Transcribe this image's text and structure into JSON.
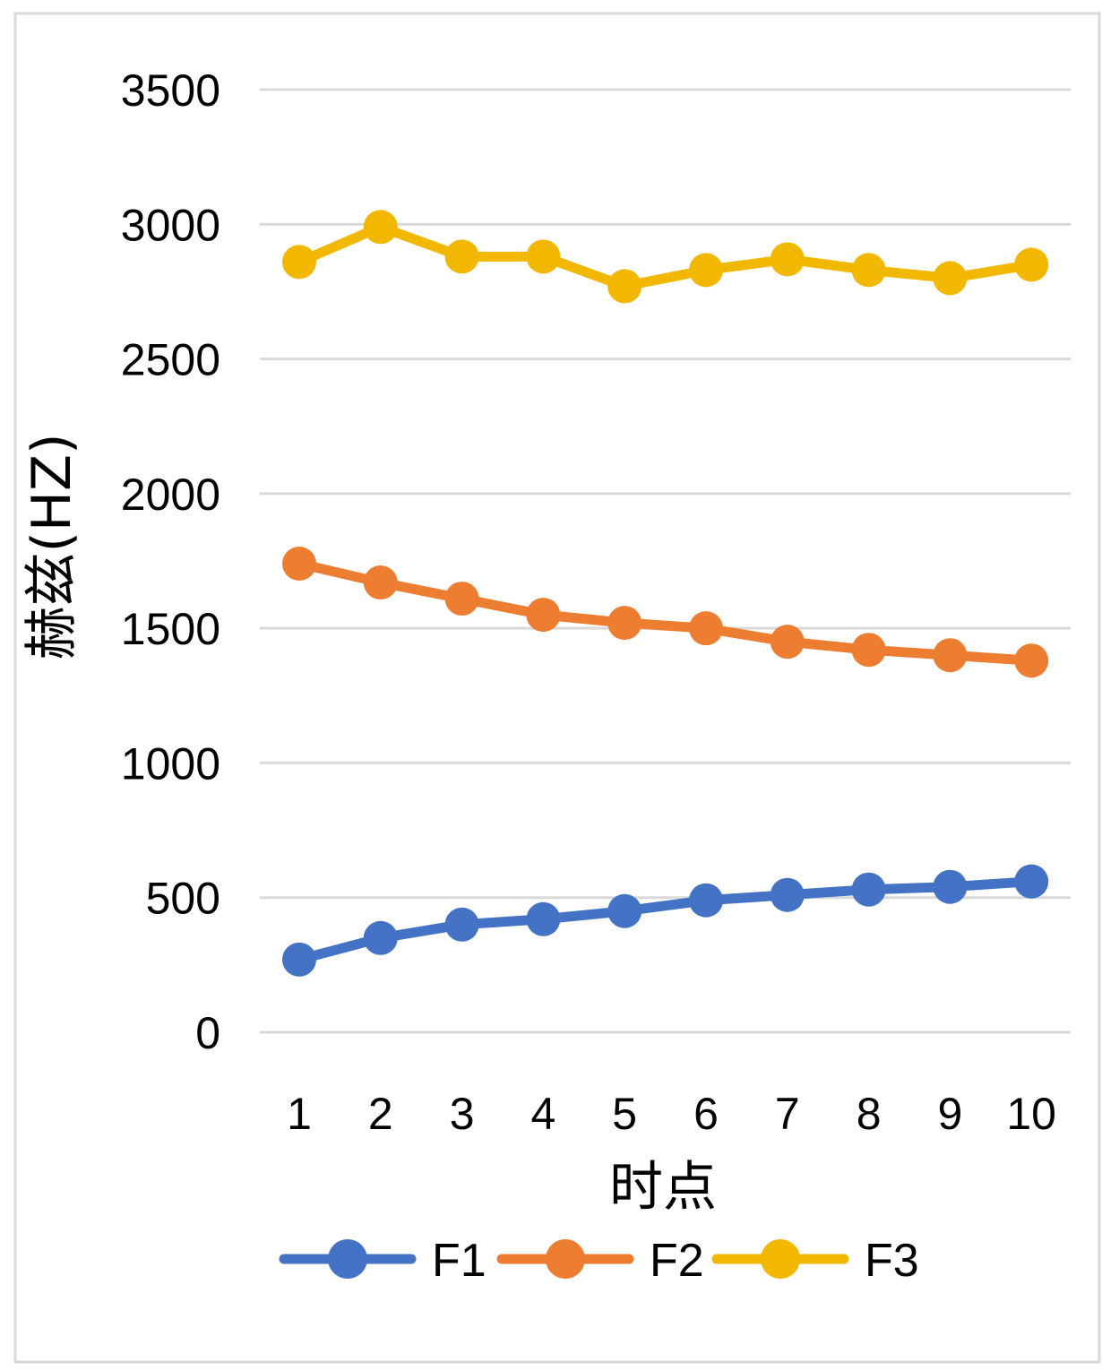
{
  "chart_data": {
    "type": "line",
    "title": "",
    "xlabel": "时点",
    "ylabel": "赫兹(HZ)",
    "categories": [
      "1",
      "2",
      "3",
      "4",
      "5",
      "6",
      "7",
      "8",
      "9",
      "10"
    ],
    "ylim": [
      0,
      3500
    ],
    "yticks": [
      "0",
      "500",
      "1000",
      "1500",
      "2000",
      "2500",
      "3000",
      "3500"
    ],
    "grid": true,
    "legend": "bottom",
    "series": [
      {
        "name": "F1",
        "color": "#4472C4",
        "values": [
          270,
          350,
          400,
          420,
          450,
          490,
          510,
          530,
          540,
          560
        ]
      },
      {
        "name": "F2",
        "color": "#ED7D31",
        "values": [
          1740,
          1670,
          1610,
          1550,
          1520,
          1500,
          1450,
          1420,
          1400,
          1380
        ]
      },
      {
        "name": "F3",
        "color": "#F2B800",
        "values": [
          2860,
          2990,
          2880,
          2880,
          2770,
          2830,
          2870,
          2830,
          2800,
          2850
        ]
      }
    ]
  }
}
